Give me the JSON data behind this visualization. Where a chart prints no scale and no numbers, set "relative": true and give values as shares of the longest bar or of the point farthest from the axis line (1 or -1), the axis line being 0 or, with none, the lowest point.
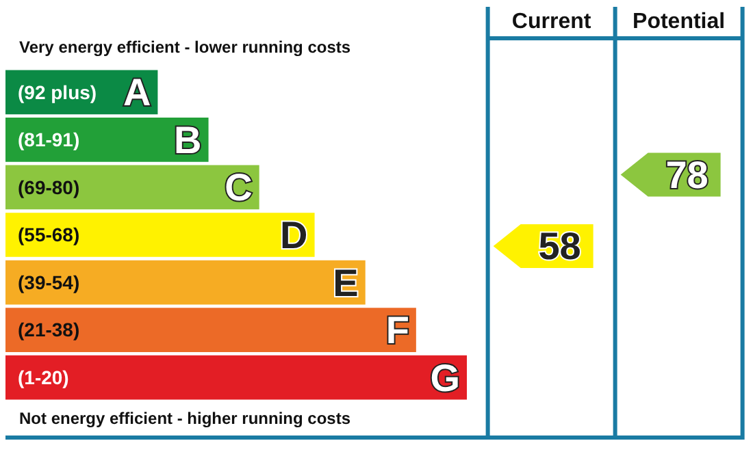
{
  "chart_data": [
    {
      "type": "bar",
      "orientation": "horizontal",
      "relative": true,
      "categories": [
        "(92 plus) A",
        "(81-91) B",
        "(69-80) C",
        "(55-68) D",
        "(39-54) E",
        "(21-38) F",
        "(1-20) G"
      ],
      "values": [
        0.33,
        0.44,
        0.55,
        0.67,
        0.78,
        0.89,
        1
      ],
      "colors": [
        "#0b8a45",
        "#22a038",
        "#8cc63f",
        "#fff200",
        "#f6ac23",
        "#ec6a27",
        "#e31e25"
      ],
      "annotations": [
        "Very energy efficient - lower running costs",
        "Not energy efficient - higher running costs"
      ]
    },
    {
      "type": "other",
      "categories": [
        "Current",
        "Potential"
      ],
      "values": [
        58,
        78
      ],
      "colors": [
        "#fff200",
        "#8cc63f"
      ],
      "data_labels": true
    }
  ]
}
